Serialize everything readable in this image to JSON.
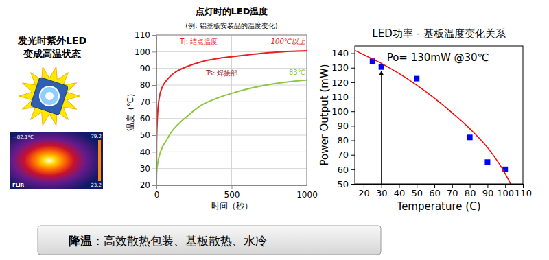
{
  "left_panel": {
    "heading": [
      "发光时紫外LED",
      "变成高温状态"
    ],
    "thermal_image": {
      "spot_label": "~82.1°C",
      "brand": "FLIR",
      "scale_max": "79.2",
      "scale_min": "23.2"
    }
  },
  "chart_data": [
    {
      "type": "line",
      "title": "点灯时的LED温度",
      "subtitle": "(例: 铝基板安装品的温度变化)",
      "x_label": "时间（秒）",
      "y_label": "温度（℃）",
      "xlim": [
        0,
        1000
      ],
      "ylim": [
        20,
        110
      ],
      "xticks": [
        0,
        500,
        1000
      ],
      "yticks": [
        20,
        30,
        40,
        50,
        60,
        70,
        80,
        90,
        100,
        110
      ],
      "grid": true,
      "series": [
        {
          "name": "Tj: 结点温度",
          "color": "#e8201f",
          "x": [
            0,
            1,
            5,
            10,
            20,
            40,
            60,
            100,
            150,
            200,
            300,
            400,
            500,
            600,
            700,
            800,
            900,
            1000
          ],
          "values": [
            22,
            45,
            58,
            66,
            73,
            79,
            82,
            86,
            89,
            91,
            94,
            95.8,
            97,
            98,
            99,
            99.7,
            100.2,
            100.6
          ]
        },
        {
          "name": "Ts: 焊接部",
          "color": "#8dc63f",
          "x": [
            0,
            1,
            5,
            10,
            20,
            40,
            60,
            100,
            150,
            200,
            300,
            400,
            500,
            600,
            700,
            800,
            900,
            1000
          ],
          "values": [
            22,
            27,
            31,
            34,
            38,
            43,
            46,
            52,
            57,
            61,
            68,
            72,
            75,
            77.5,
            79.5,
            81,
            82.2,
            83
          ]
        }
      ],
      "annotations": [
        "100℃以上",
        "83℃"
      ]
    },
    {
      "type": "scatter",
      "title": "LED功率 - 基板温度变化关系",
      "x_label": "Temperature (C)",
      "y_label": "Power Output (mW)",
      "xlim": [
        15,
        110
      ],
      "ylim": [
        50,
        145
      ],
      "xticks": [
        20,
        30,
        40,
        50,
        60,
        70,
        80,
        90,
        100,
        110
      ],
      "yticks": [
        50,
        60,
        70,
        80,
        90,
        100,
        110,
        120,
        130,
        140
      ],
      "series": [
        {
          "type": "scatter",
          "marker": "square",
          "color": "#0000ff",
          "x": [
            25,
            30,
            50,
            80,
            90,
            100
          ],
          "values": [
            134.5,
            130.5,
            122.5,
            82,
            65,
            60
          ]
        },
        {
          "type": "line",
          "line_style": "solid",
          "color": "#ff0000",
          "x": [
            15,
            20,
            30,
            40,
            50,
            60,
            70,
            80,
            90,
            100,
            103
          ],
          "values": [
            142,
            139,
            133,
            126,
            118,
            109,
            99,
            88,
            75,
            57,
            50
          ]
        }
      ],
      "annotations": [
        "Po= 130mW @30℃"
      ]
    }
  ],
  "banner": {
    "bold": "降温",
    "text": "：高效散热包装、基板散热、水冷"
  }
}
